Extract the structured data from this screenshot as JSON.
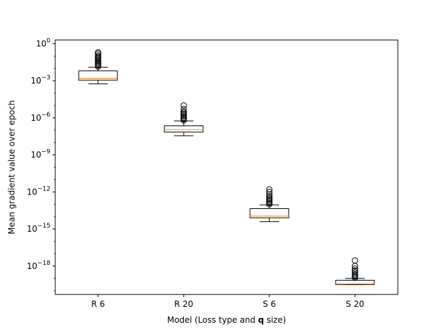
{
  "chart_data": {
    "type": "boxplot",
    "title": "",
    "xlabel_parts": [
      {
        "text": "Model (Loss type and ",
        "bold": false
      },
      {
        "text": "q",
        "bold": true
      },
      {
        "text": " size)",
        "bold": false
      }
    ],
    "ylabel": "Mean gradient value over epoch",
    "yscale": "log",
    "ylim_exp": [
      -20.3,
      0.3
    ],
    "yticks": [
      {
        "exp": 0,
        "base": "10",
        "sup": "0"
      },
      {
        "exp": -3,
        "base": "10",
        "sup": "−3"
      },
      {
        "exp": -6,
        "base": "10",
        "sup": "−6"
      },
      {
        "exp": -9,
        "base": "10",
        "sup": "−9"
      },
      {
        "exp": -12,
        "base": "10",
        "sup": "−12"
      },
      {
        "exp": -15,
        "base": "10",
        "sup": "−15"
      },
      {
        "exp": -18,
        "base": "10",
        "sup": "−18"
      }
    ],
    "categories": [
      "R 6",
      "R 20",
      "S 6",
      "S 20"
    ],
    "boxes": [
      {
        "name": "R 6",
        "whisker_low": -3.25,
        "q1": -2.95,
        "median": -2.8,
        "q3": -2.2,
        "whisker_high": -1.9,
        "fliers": [
          -0.7,
          -0.8,
          -0.95,
          -1.05,
          -1.15,
          -1.25,
          -1.35,
          -1.45,
          -1.55,
          -1.65,
          -1.75,
          -1.85
        ]
      },
      {
        "name": "R 20",
        "whisker_low": -7.45,
        "q1": -7.15,
        "median": -6.95,
        "q3": -6.65,
        "whisker_high": -6.25,
        "fliers": [
          -5.0,
          -5.3,
          -5.5,
          -5.6,
          -5.7,
          -5.8,
          -5.9,
          -6.0,
          -6.1,
          -6.2
        ]
      },
      {
        "name": "S 6",
        "whisker_low": -14.4,
        "q1": -14.1,
        "median": -13.95,
        "q3": -13.35,
        "whisker_high": -13.05,
        "fliers": [
          -11.8,
          -12.0,
          -12.2,
          -12.35,
          -12.5,
          -12.6,
          -12.7,
          -12.8,
          -12.9,
          -13.0
        ]
      },
      {
        "name": "S 20",
        "whisker_low": -19.5,
        "q1": -19.5,
        "median": -19.45,
        "q3": -19.15,
        "whisker_high": -19.0,
        "fliers": [
          -17.55,
          -18.0,
          -18.2,
          -18.35,
          -18.5,
          -18.65,
          -18.75,
          -18.85,
          -18.95
        ]
      }
    ],
    "colors": {
      "box": "#000000",
      "median": "#ff7f0e",
      "axes": "#000000",
      "background": "#ffffff"
    },
    "grid": false
  }
}
